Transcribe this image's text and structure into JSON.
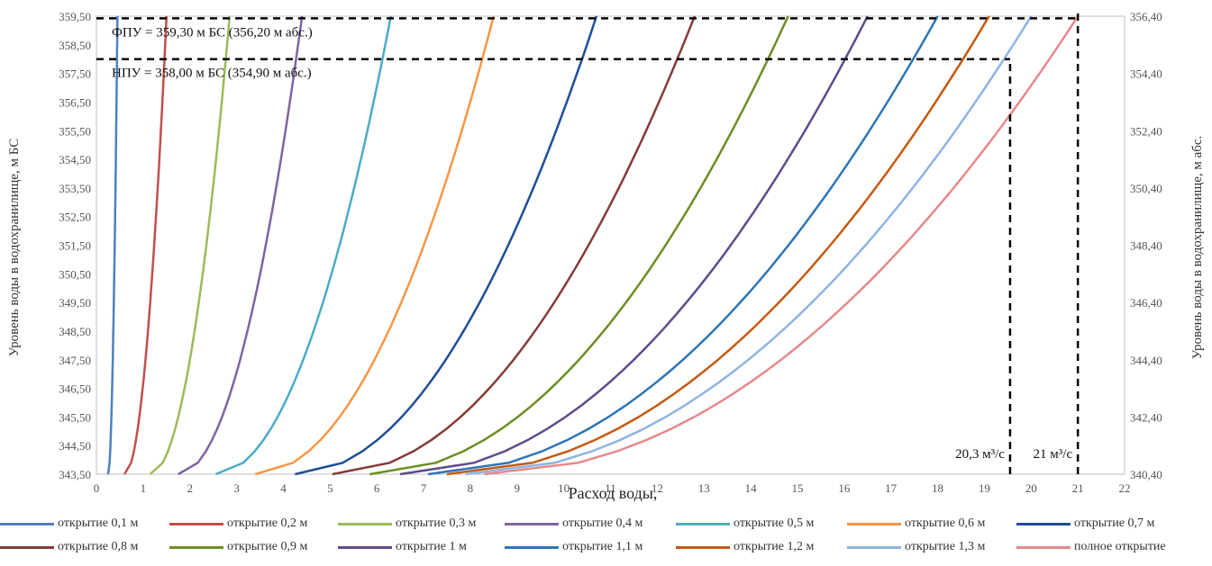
{
  "chart_data": {
    "type": "line",
    "xlabel": "Расход воды,",
    "ylabel_left": "Уровень воды в водохранилище, м БС",
    "ylabel_right": "Уровень воды в водохранилище, м абс.",
    "xlim": [
      0,
      22
    ],
    "xticks": [
      "0",
      "1",
      "2",
      "3",
      "4",
      "5",
      "6",
      "7",
      "8",
      "9",
      "10",
      "11",
      "12",
      "13",
      "14",
      "15",
      "16",
      "17",
      "18",
      "19",
      "20",
      "21",
      "22"
    ],
    "ylim_left": [
      343.5,
      359.5
    ],
    "yticks_left": [
      "343,50",
      "344,50",
      "345,50",
      "346,50",
      "347,50",
      "348,50",
      "349,50",
      "350,50",
      "351,50",
      "352,50",
      "353,50",
      "354,50",
      "355,50",
      "356,50",
      "357,50",
      "358,50",
      "359,50"
    ],
    "ylim_right": [
      340.4,
      356.4
    ],
    "yticks_right": [
      "340,40",
      "342,40",
      "344,40",
      "346,40",
      "348,40",
      "350,40",
      "352,40",
      "354,40",
      "356,40"
    ],
    "grid": false,
    "legend_position": "bottom",
    "series": [
      {
        "name": "открытие 0,1 м",
        "color": "#4f81bd",
        "x": [
          0.25,
          0.45
        ],
        "y": [
          343.5,
          359.5
        ]
      },
      {
        "name": "открытие 0,2 м",
        "color": "#c0504d",
        "x": [
          0.6,
          1.5
        ],
        "y": [
          343.5,
          359.5
        ]
      },
      {
        "name": "открытие 0,3 м",
        "color": "#9bbb59",
        "x": [
          1.15,
          2.85
        ],
        "y": [
          343.5,
          359.5
        ]
      },
      {
        "name": "открытие 0,4 м",
        "color": "#8064a2",
        "x": [
          1.75,
          4.4
        ],
        "y": [
          343.5,
          359.5
        ]
      },
      {
        "name": "открытие 0,5 м",
        "color": "#4bacc6",
        "x": [
          2.55,
          6.3
        ],
        "y": [
          343.5,
          359.5
        ]
      },
      {
        "name": "открытие 0,6 м",
        "color": "#f79646",
        "x": [
          3.4,
          8.5
        ],
        "y": [
          343.5,
          359.5
        ]
      },
      {
        "name": "открытие 0,7 м",
        "color": "#1f4e96",
        "x": [
          4.25,
          10.7
        ],
        "y": [
          343.5,
          359.5
        ]
      },
      {
        "name": "открытие 0,8 м",
        "color": "#843c39",
        "x": [
          5.05,
          12.8
        ],
        "y": [
          343.5,
          359.5
        ]
      },
      {
        "name": "открытие 0,9 м",
        "color": "#6b8e23",
        "x": [
          5.85,
          14.8
        ],
        "y": [
          343.5,
          359.5
        ]
      },
      {
        "name": "открытие 1 м",
        "color": "#5f4b8b",
        "x": [
          6.5,
          16.5
        ],
        "y": [
          343.5,
          359.5
        ]
      },
      {
        "name": "открытие 1,1 м",
        "color": "#2e75b6",
        "x": [
          7.1,
          18.0
        ],
        "y": [
          343.5,
          359.5
        ]
      },
      {
        "name": "открытие 1,2 м",
        "color": "#c55a11",
        "x": [
          7.5,
          19.1
        ],
        "y": [
          343.5,
          359.5
        ]
      },
      {
        "name": "открытие 1,3 м",
        "color": "#8eb4e3",
        "x": [
          7.9,
          20.0
        ],
        "y": [
          343.5,
          359.5
        ]
      },
      {
        "name": "полное открытие",
        "color": "#e6898b",
        "x": [
          8.3,
          21.0
        ],
        "y": [
          343.5,
          359.5
        ]
      }
    ],
    "reference_lines": [
      {
        "label": "ФПУ = 359,30 м БС (356,20 м абс.)",
        "y": 359.3
      },
      {
        "label": "НПУ = 358,00 м БС (354,90 м абс.)",
        "y": 358.0
      }
    ],
    "annotations": [
      {
        "text": "20,3 м³/с",
        "x": 19.55,
        "y_from": 343.5,
        "y_to": 358.0
      },
      {
        "text": "21 м³/с",
        "x": 21.0,
        "y_from": 343.5,
        "y_to": 359.5
      }
    ]
  }
}
